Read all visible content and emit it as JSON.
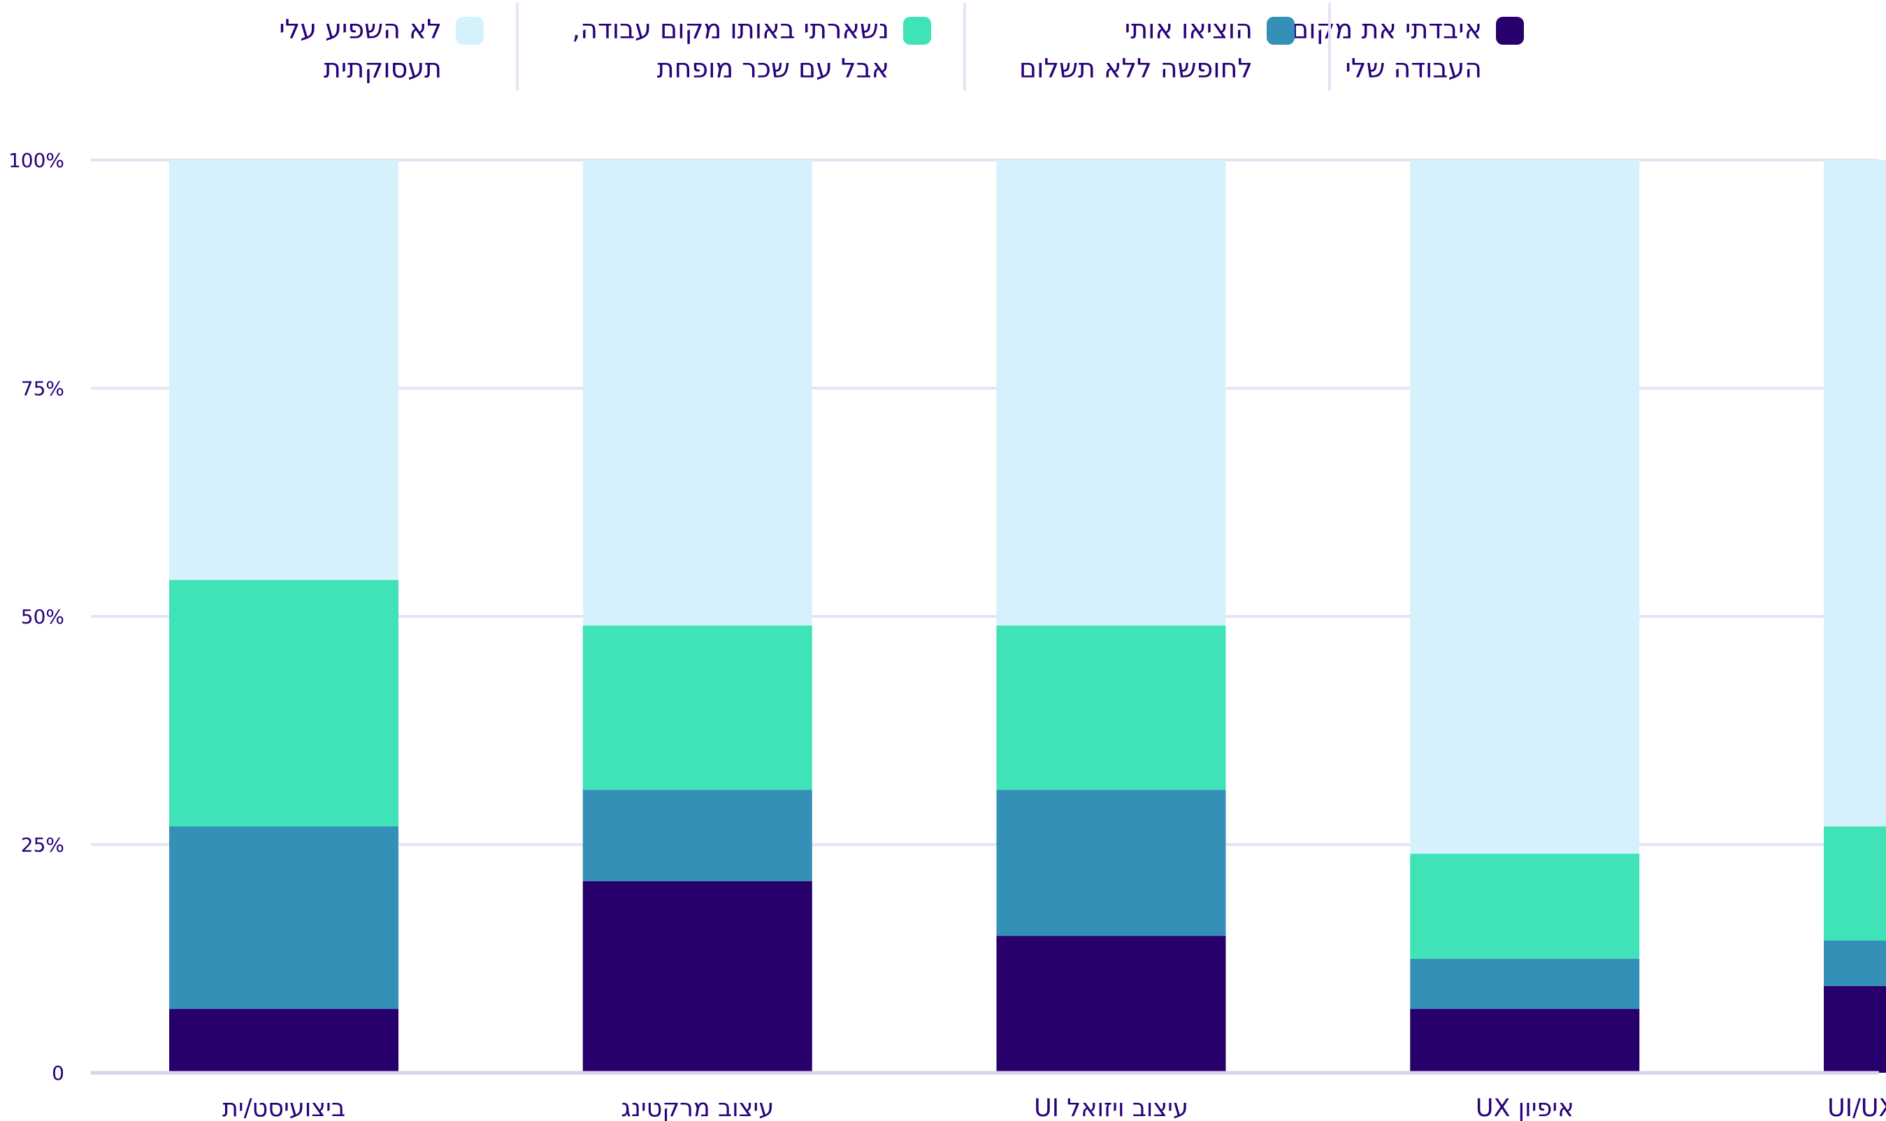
{
  "chart_data": {
    "type": "bar",
    "stacked": true,
    "categories": [
      "ביצועיסט/ית",
      "עיצוב מרקטינג",
      "עיצוב ויזואל UI",
      "איפיון UX",
      "עיצוב פרודקט UI/UX"
    ],
    "series": [
      {
        "name": "איבדתי את מקום\nהעבודה שלי",
        "color": "#27006b",
        "values": [
          7,
          21,
          15,
          7,
          9.5
        ]
      },
      {
        "name": "הוציאו אותי\nלחופשה ללא תשלום",
        "color": "#3590b8",
        "values": [
          20,
          10,
          16,
          5.5,
          5
        ]
      },
      {
        "name": "נשארתי באותו מקום עבודה,\nאבל עם שכר מופחת",
        "color": "#40e2b7",
        "values": [
          27,
          18,
          18,
          11.5,
          12.5
        ]
      },
      {
        "name": "לא השפיע עלי\nתעסוקתית",
        "color": "#d5f2fc",
        "values": [
          46,
          51,
          51,
          76,
          73
        ]
      }
    ],
    "yticks": [
      {
        "value": 0,
        "label": "0"
      },
      {
        "value": 25,
        "label": "25%"
      },
      {
        "value": 50,
        "label": "50%"
      },
      {
        "value": 75,
        "label": "75%"
      },
      {
        "value": 100,
        "label": "100%"
      }
    ],
    "ylim": [
      0,
      100
    ],
    "grid": true,
    "legend_position": "top"
  }
}
